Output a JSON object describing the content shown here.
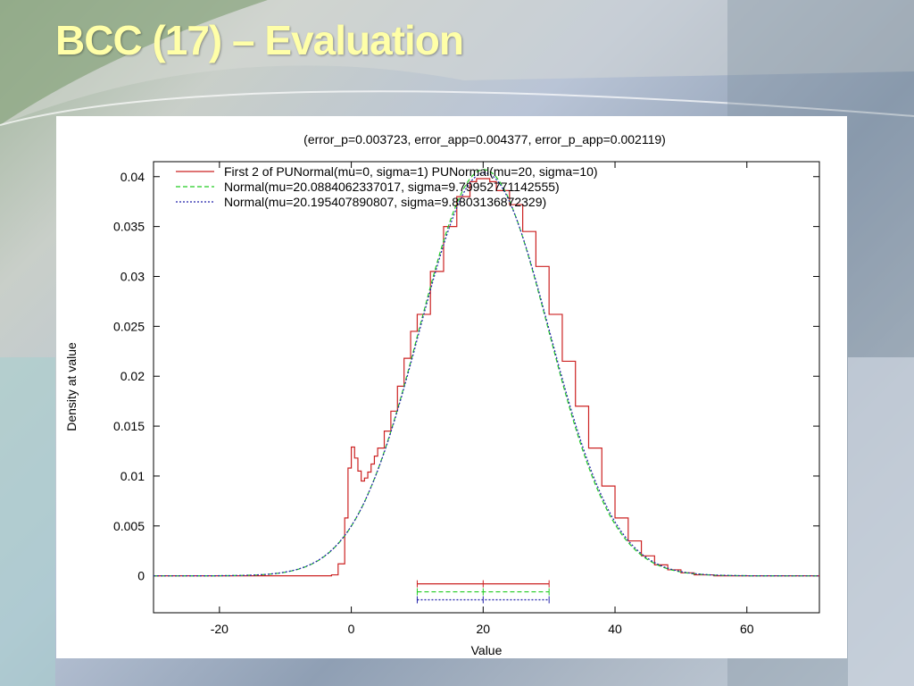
{
  "slide": {
    "title": "BCC (17) – Evaluation"
  },
  "chart_data": {
    "type": "line",
    "title": "(error_p=0.003723, error_app=0.004377, error_p_app=0.002119)",
    "xlabel": "Value",
    "ylabel": "Density at value",
    "xlim": [
      -30,
      71
    ],
    "ylim": [
      -0.0037,
      0.0415
    ],
    "x_ticks": [
      -20,
      0,
      20,
      40,
      60
    ],
    "y_ticks": [
      0,
      0.005,
      0.01,
      0.015,
      0.02,
      0.025,
      0.03,
      0.035,
      0.04
    ],
    "x_tick_labels": [
      "-20",
      "0",
      "20",
      "40",
      "60"
    ],
    "y_tick_labels": [
      "0",
      "0.005",
      "0.01",
      "0.015",
      "0.02",
      "0.025",
      "0.03",
      "0.035",
      "0.04"
    ],
    "grid": false,
    "legend_position": "top-left",
    "series": [
      {
        "name": "First 2 of PUNormal(mu=0, sigma=1) PUNormal(mu=20, sigma=10)",
        "style": "step",
        "color": "#cc2222",
        "x": [
          -3,
          -2,
          -1,
          -0.5,
          0,
          0.5,
          1,
          1.5,
          2,
          2.5,
          3,
          3.5,
          4,
          5,
          6,
          7,
          8,
          9,
          10,
          12,
          14,
          16,
          18,
          19,
          20,
          21,
          22,
          24,
          26,
          28,
          30,
          32,
          34,
          36,
          38,
          40,
          42,
          44,
          46,
          48,
          50,
          52,
          55,
          58
        ],
        "values": [
          0.0001,
          0.0012,
          0.0058,
          0.0108,
          0.0129,
          0.0118,
          0.0105,
          0.0095,
          0.0098,
          0.0104,
          0.0112,
          0.012,
          0.0128,
          0.0145,
          0.0165,
          0.019,
          0.0218,
          0.0245,
          0.0262,
          0.0305,
          0.035,
          0.038,
          0.0395,
          0.0398,
          0.0398,
          0.0395,
          0.0386,
          0.0372,
          0.0345,
          0.031,
          0.0262,
          0.0215,
          0.017,
          0.0128,
          0.009,
          0.0058,
          0.0035,
          0.002,
          0.0011,
          0.0006,
          0.0003,
          0.0001,
          0.0,
          0.0
        ],
        "interval": [
          10,
          20,
          30
        ]
      },
      {
        "name": "Normal(mu=20.0884062337017, sigma=9.79952771142555)",
        "style": "dashed",
        "color": "#22cc22",
        "mu": 20.0884062337017,
        "sigma": 9.79952771142555,
        "interval": [
          10,
          20,
          30
        ]
      },
      {
        "name": "Normal(mu=20.195407890807, sigma=9.8803136872329)",
        "style": "dotted",
        "color": "#2222aa",
        "mu": 20.195407890807,
        "sigma": 9.8803136872329,
        "interval": [
          10,
          20,
          30
        ]
      }
    ]
  }
}
